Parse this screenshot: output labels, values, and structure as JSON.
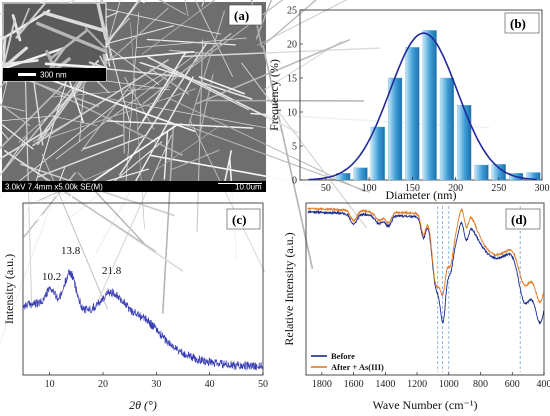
{
  "panels": {
    "a": {
      "label": "(a)",
      "scale_bar": "300 nm",
      "footer_info": "3.0kV 7.4mm x5.00k SE(M)",
      "footer_scale": "10.0um"
    },
    "b": {
      "label": "(b)"
    },
    "c": {
      "label": "(c)"
    },
    "d": {
      "label": "(d)"
    }
  },
  "chart_data": [
    {
      "panel": "(b)",
      "type": "bar",
      "xlabel": "Diameter (nm)",
      "ylabel": "Frequency (%)",
      "xlim": [
        20,
        300
      ],
      "ylim": [
        0,
        25
      ],
      "xticks": [
        50,
        100,
        150,
        200,
        250,
        300
      ],
      "yticks": [
        0,
        5,
        10,
        15,
        20,
        25
      ],
      "bin_centers": [
        70,
        90,
        110,
        130,
        150,
        170,
        190,
        210,
        230,
        250,
        270,
        290
      ],
      "values": [
        1.0,
        1.8,
        7.8,
        15.0,
        19.5,
        22.0,
        15.0,
        11.0,
        2.2,
        2.3,
        1.0,
        1.1
      ],
      "fit": {
        "type": "gaussian",
        "mean": 163,
        "sigma": 39,
        "peak": 21.6,
        "color": "#22289a"
      },
      "bar_color": "#3d9dd6"
    },
    {
      "panel": "(c)",
      "type": "line",
      "xlabel": "2θ (°)",
      "ylabel": "Intensity (a.u.)",
      "xlim": [
        5,
        50
      ],
      "xticks": [
        10,
        20,
        30,
        40,
        50
      ],
      "annotations": [
        "10.2",
        "13.8",
        "21.8"
      ],
      "peaks_x": [
        10.2,
        13.8,
        21.8
      ],
      "color": "#3b3fb5"
    },
    {
      "panel": "(d)",
      "type": "line",
      "xlabel": "Wave Number (cm⁻¹)",
      "ylabel": "Relative Intensity (a.u.)",
      "xlim": [
        1900,
        400
      ],
      "xticks": [
        1800,
        1600,
        1400,
        1200,
        1000,
        800,
        600,
        400
      ],
      "reference_lines_x": [
        1070,
        1040,
        1000,
        550
      ],
      "series": [
        {
          "name": "Before",
          "color": "#1a2b8c"
        },
        {
          "name": "After + As(III)",
          "color": "#e07a22"
        }
      ]
    }
  ]
}
